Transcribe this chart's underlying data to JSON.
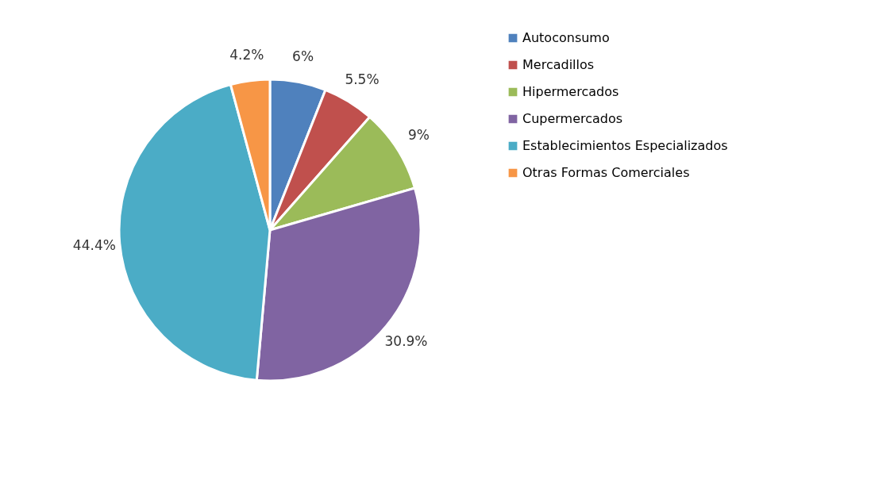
{
  "chart_data": {
    "type": "pie",
    "categories": [
      "Autoconsumo",
      "Mercadillos",
      "Hipermercados",
      "Cupermercados",
      "Establecimientos Especializados",
      "Otras Formas Comerciales"
    ],
    "values": [
      6,
      5.5,
      9,
      30.9,
      44.4,
      4.2
    ],
    "value_labels": [
      "6%",
      "5.5%",
      "9%",
      "30.9%",
      "44.4%",
      "4.2%"
    ],
    "colors": [
      "#4f81bd",
      "#c0504d",
      "#9bbb59",
      "#8064a2",
      "#4bacc6",
      "#f79646"
    ],
    "legend": "right"
  }
}
